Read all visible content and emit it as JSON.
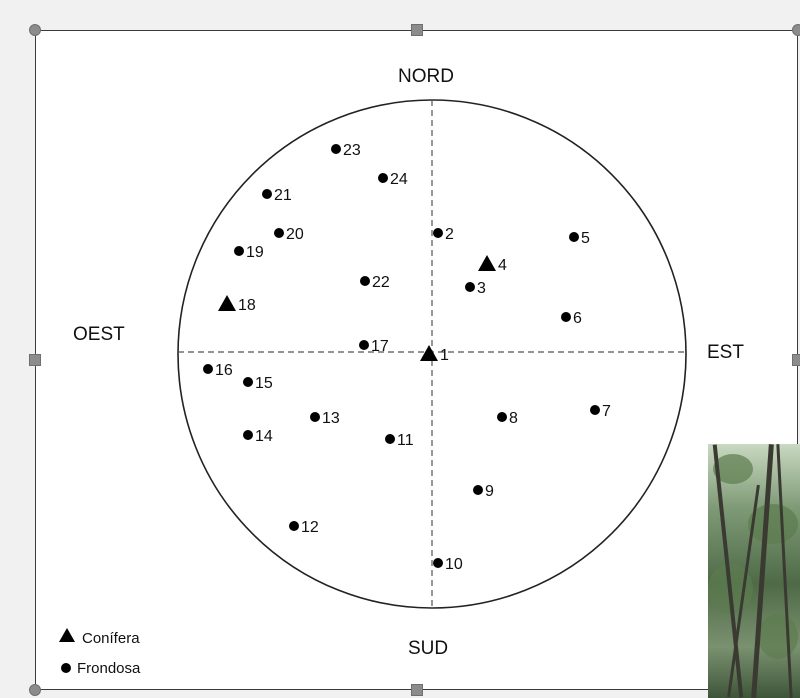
{
  "directions": {
    "north": "NORD",
    "south": "SUD",
    "east": "EST",
    "west": "OEST"
  },
  "legend": {
    "conifer": "Conífera",
    "broadleaf": "Frondosa"
  },
  "trees": [
    {
      "id": "1",
      "type": "conifer"
    },
    {
      "id": "2",
      "type": "broadleaf"
    },
    {
      "id": "3",
      "type": "broadleaf"
    },
    {
      "id": "4",
      "type": "conifer"
    },
    {
      "id": "5",
      "type": "broadleaf"
    },
    {
      "id": "6",
      "type": "broadleaf"
    },
    {
      "id": "7",
      "type": "broadleaf"
    },
    {
      "id": "8",
      "type": "broadleaf"
    },
    {
      "id": "9",
      "type": "broadleaf"
    },
    {
      "id": "10",
      "type": "broadleaf"
    },
    {
      "id": "11",
      "type": "broadleaf"
    },
    {
      "id": "12",
      "type": "broadleaf"
    },
    {
      "id": "13",
      "type": "broadleaf"
    },
    {
      "id": "14",
      "type": "broadleaf"
    },
    {
      "id": "15",
      "type": "broadleaf"
    },
    {
      "id": "16",
      "type": "broadleaf"
    },
    {
      "id": "17",
      "type": "broadleaf"
    },
    {
      "id": "18",
      "type": "conifer"
    },
    {
      "id": "19",
      "type": "broadleaf"
    },
    {
      "id": "20",
      "type": "broadleaf"
    },
    {
      "id": "21",
      "type": "broadleaf"
    },
    {
      "id": "22",
      "type": "broadleaf"
    },
    {
      "id": "23",
      "type": "broadleaf"
    },
    {
      "id": "24",
      "type": "broadleaf"
    }
  ],
  "colors": {
    "marker": "#000000",
    "line": "#555555",
    "frame": "#3b3b3b",
    "handle": "#8c8c8c"
  },
  "photo": {
    "icon": "forest-photo"
  }
}
